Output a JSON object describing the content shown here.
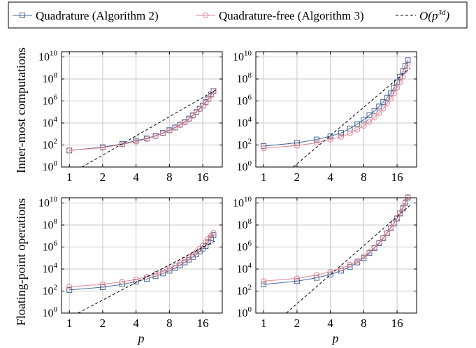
{
  "chart_data": {
    "type": "line",
    "legend": {
      "placement": "top",
      "entries": [
        {
          "label": "Quadrature (Algorithm 2)",
          "color": "#4a6a9c",
          "marker": "square",
          "dash": false
        },
        {
          "label": "Quadrature-free (Algorithm 3)",
          "color": "#e0848f",
          "marker": "circle",
          "dash": false
        },
        {
          "label": "O(p^{3d})",
          "label_base": "O(p",
          "label_sup": "3d",
          "label_close": ")",
          "color": "#000000",
          "marker": "none",
          "dash": true
        }
      ]
    },
    "xscale": "log2",
    "yscale": "log10",
    "xlim": [
      0.85,
      24
    ],
    "ylim": [
      1,
      30000000000
    ],
    "xticks": [
      1,
      2,
      4,
      8,
      16
    ],
    "xtick_labels": [
      "1",
      "2",
      "4",
      "8",
      "16"
    ],
    "ytick_exponents": [
      0,
      2,
      4,
      6,
      8,
      10
    ],
    "ytick_base": "10",
    "xlabel": "p",
    "row_labels": [
      "Inner-most computations",
      "Floating-point operations"
    ],
    "grid": true,
    "p_values": [
      1,
      2,
      3,
      4,
      5,
      6,
      7,
      8,
      9,
      10,
      11,
      12,
      13,
      14,
      15,
      16,
      17,
      18,
      19,
      20
    ],
    "panels": [
      {
        "row": 0,
        "col": 0,
        "series": [
          {
            "name": "Quadrature (Algorithm 2)",
            "log10_y": [
              1.5,
              1.8,
              2.1,
              2.4,
              2.6,
              2.85,
              3.1,
              3.35,
              3.6,
              3.85,
              4.1,
              4.4,
              4.7,
              5.0,
              5.3,
              5.6,
              5.9,
              6.2,
              6.6,
              6.9
            ]
          },
          {
            "name": "Quadrature-free (Algorithm 3)",
            "log10_y": [
              1.5,
              1.75,
              2.05,
              2.3,
              2.55,
              2.8,
              3.05,
              3.3,
              3.55,
              3.8,
              4.05,
              4.35,
              4.65,
              4.95,
              5.25,
              5.55,
              5.85,
              6.15,
              6.5,
              6.9
            ]
          },
          {
            "name": "O(p^{3d})",
            "x": [
              1.3,
              21
            ],
            "log10_y": [
              0,
              7.0
            ]
          }
        ]
      },
      {
        "row": 0,
        "col": 1,
        "series": [
          {
            "name": "Quadrature (Algorithm 2)",
            "log10_y": [
              1.9,
              2.2,
              2.5,
              2.8,
              3.1,
              3.5,
              3.9,
              4.3,
              4.7,
              5.1,
              5.5,
              5.9,
              6.3,
              6.7,
              7.2,
              7.7,
              8.2,
              8.7,
              9.2,
              9.7
            ]
          },
          {
            "name": "Quadrature-free (Algorithm 3)",
            "log10_y": [
              1.7,
              1.95,
              2.2,
              2.5,
              2.75,
              3.05,
              3.4,
              3.75,
              4.1,
              4.5,
              4.9,
              5.3,
              5.75,
              6.2,
              6.7,
              7.2,
              7.7,
              8.2,
              8.8,
              9.4
            ]
          },
          {
            "name": "O(p^{3d})",
            "x": [
              1.85,
              21
            ],
            "log10_y": [
              0,
              9.0
            ]
          }
        ]
      },
      {
        "row": 1,
        "col": 0,
        "series": [
          {
            "name": "Quadrature (Algorithm 2)",
            "log10_y": [
              2.1,
              2.35,
              2.6,
              2.85,
              3.1,
              3.35,
              3.6,
              3.85,
              4.1,
              4.35,
              4.6,
              4.85,
              5.1,
              5.35,
              5.6,
              5.85,
              6.1,
              6.45,
              6.8,
              7.1
            ]
          },
          {
            "name": "Quadrature-free (Algorithm 3)",
            "log10_y": [
              2.4,
              2.6,
              2.85,
              3.05,
              3.3,
              3.55,
              3.8,
              4.05,
              4.3,
              4.55,
              4.8,
              5.05,
              5.3,
              5.55,
              5.85,
              6.15,
              6.45,
              6.75,
              7.05,
              7.3
            ]
          },
          {
            "name": "O(p^{3d})",
            "x": [
              1.2,
              21
            ],
            "log10_y": [
              0,
              6.6
            ]
          }
        ]
      },
      {
        "row": 1,
        "col": 1,
        "series": [
          {
            "name": "Quadrature (Algorithm 2)",
            "log10_y": [
              2.6,
              2.9,
              3.2,
              3.5,
              3.85,
              4.2,
              4.6,
              5.0,
              5.45,
              5.9,
              6.35,
              6.8,
              7.25,
              7.7,
              8.15,
              8.6,
              9.05,
              9.5,
              10.0,
              10.5
            ]
          },
          {
            "name": "Quadrature-free (Algorithm 3)",
            "log10_y": [
              2.9,
              3.15,
              3.45,
              3.75,
              4.05,
              4.4,
              4.75,
              5.15,
              5.55,
              5.95,
              6.4,
              6.85,
              7.3,
              7.75,
              8.2,
              8.65,
              9.1,
              9.6,
              10.1,
              10.55
            ]
          },
          {
            "name": "O(p^{3d})",
            "x": [
              1.6,
              21
            ],
            "log10_y": [
              0,
              9.8
            ]
          }
        ]
      }
    ]
  }
}
